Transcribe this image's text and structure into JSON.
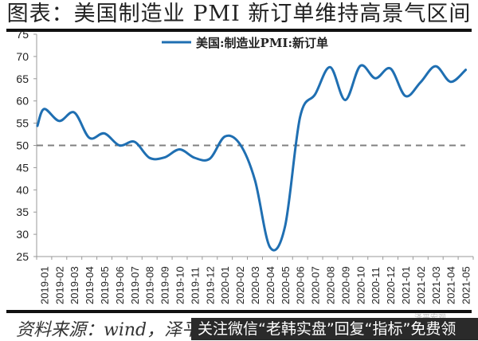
{
  "header": {
    "title": "图表：美国制造业 PMI 新订单维持高景气区间"
  },
  "footer": {
    "source": "资料来源：wind，泽平宏观",
    "banner": "关注微信“老韩实盘”回复“指标”免费领",
    "watermark": "泽平宏观"
  },
  "colors": {
    "line": "#1f6fb2",
    "reference_line": "#808080",
    "axis": "#999999",
    "text": "#222222"
  },
  "chart_data": {
    "type": "line",
    "title": "图表：美国制造业 PMI 新订单维持高景气区间",
    "xlabel": "",
    "ylabel": "",
    "ylim": [
      25,
      75
    ],
    "yticks": [
      25,
      30,
      35,
      40,
      45,
      50,
      55,
      60,
      65,
      70,
      75
    ],
    "grid": false,
    "legend_position": "top-center",
    "reference_line": {
      "y": 50,
      "style": "dashed",
      "color": "#808080"
    },
    "categories": [
      "2019-01",
      "2019-02",
      "2019-03",
      "2019-04",
      "2019-05",
      "2019-06",
      "2019-07",
      "2019-08",
      "2019-09",
      "2019-10",
      "2019-11",
      "2019-12",
      "2020-01",
      "2020-02",
      "2020-03",
      "2020-04",
      "2020-05",
      "2020-06",
      "2020-07",
      "2020-08",
      "2020-09",
      "2020-10",
      "2020-11",
      "2020-12",
      "2021-01",
      "2021-02",
      "2021-03",
      "2021-04",
      "2021-05"
    ],
    "series": [
      {
        "name": "美国:制造业PMI:新订单",
        "color": "#1f6fb2",
        "values": [
          58.2,
          55.5,
          57.4,
          51.7,
          52.7,
          50.0,
          50.8,
          47.2,
          47.3,
          49.1,
          47.2,
          47.0,
          52.0,
          50.3,
          42.2,
          27.1,
          31.8,
          56.4,
          61.5,
          67.6,
          60.2,
          67.9,
          65.1,
          67.3,
          61.1,
          64.2,
          67.8,
          64.3,
          67.0
        ]
      }
    ]
  }
}
